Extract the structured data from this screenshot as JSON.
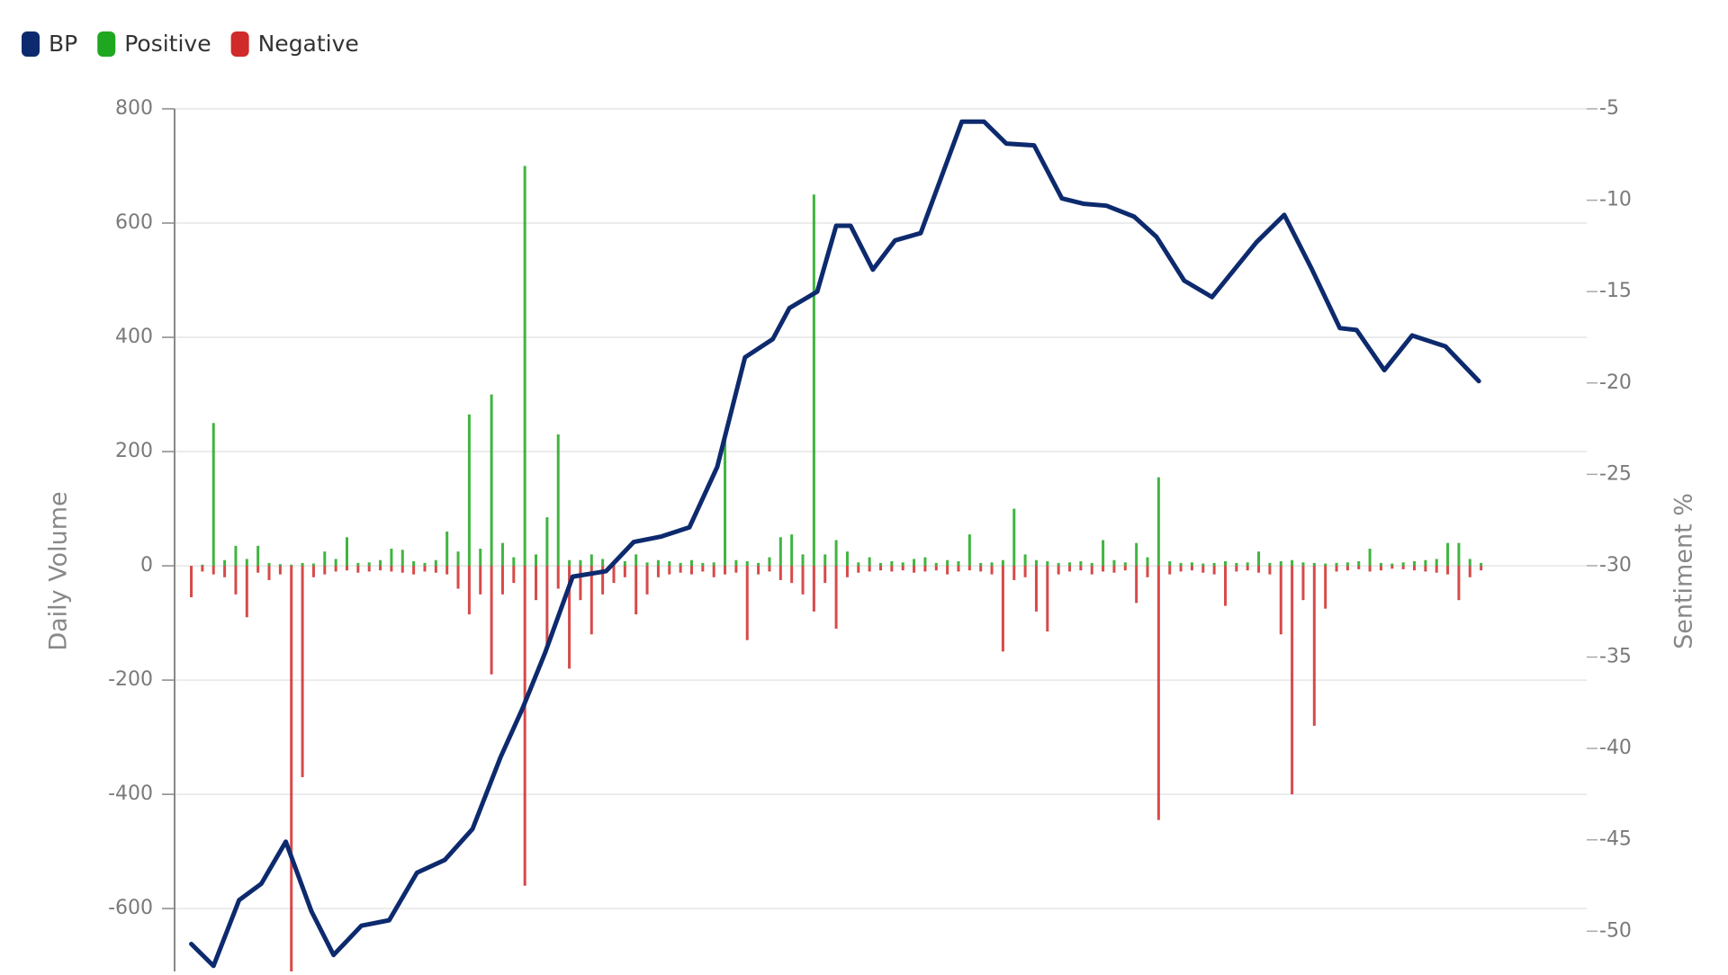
{
  "chart_data": {
    "type": "bar",
    "y_label": "Daily Volume",
    "y2_label": "Sentiment %",
    "xlim": [
      -1.5,
      125.5
    ],
    "ylim": [
      -710,
      800
    ],
    "yticks": [
      -600,
      -400,
      -200,
      0,
      200,
      400,
      600,
      800
    ],
    "y2lim": [
      -52.2,
      -5
    ],
    "y2ticks": [
      -50,
      -45,
      -40,
      -35,
      -30,
      -25,
      -20,
      -15,
      -10,
      -5
    ],
    "grid": true,
    "legend": "top-left",
    "series": [
      {
        "name": "BP",
        "color": "#0d2a6e",
        "type": "line",
        "axis": "y2",
        "x": [
          0,
          2,
          4.3,
          6.3,
          8.5,
          10.8,
          12.8,
          15.3,
          17.8,
          20.3,
          22.8,
          25.3,
          27.8,
          29.8,
          31.8,
          34.3,
          37.3,
          39.8,
          42.3,
          44.8,
          47.3,
          49.8,
          52.3,
          53.8,
          56.3,
          58,
          59.3,
          61.3,
          63.3,
          65.6,
          67.3,
          69.3,
          71.3,
          73.3,
          75.8,
          78.3,
          80.3,
          82.3,
          84.8,
          86.8,
          89.3,
          91.8,
          93.8,
          95.8,
          98.3,
          100.8,
          103.3,
          104.8,
          107.3,
          109.8,
          112.8,
          115.8
        ],
        "values": [
          -50.7,
          -51.9,
          -48.3,
          -47.4,
          -45.1,
          -48.9,
          -51.3,
          -49.7,
          -49.4,
          -46.8,
          -46.1,
          -44.4,
          -40.5,
          -37.8,
          -34.8,
          -30.6,
          -30.3,
          -28.7,
          -28.4,
          -27.9,
          -24.6,
          -18.6,
          -17.6,
          -15.9,
          -15.0,
          -11.4,
          -11.4,
          -13.8,
          -12.2,
          -11.8,
          -9.0,
          -5.7,
          -5.7,
          -6.9,
          -7.0,
          -9.9,
          -10.2,
          -10.3,
          -10.9,
          -12.0,
          -14.4,
          -15.3,
          -13.8,
          -12.3,
          -10.8,
          -13.8,
          -17.0,
          -17.1,
          -19.3,
          -17.4,
          -18.0,
          -19.9
        ]
      },
      {
        "name": "Positive",
        "color": "#1fa81f",
        "values": [
          0,
          2,
          250,
          10,
          35,
          12,
          35,
          5,
          3,
          2,
          5,
          4,
          25,
          12,
          50,
          5,
          6,
          10,
          30,
          28,
          8,
          5,
          10,
          60,
          25,
          265,
          30,
          300,
          40,
          15,
          700,
          20,
          85,
          230,
          10,
          10,
          20,
          12,
          5,
          8,
          20,
          6,
          10,
          8,
          5,
          10,
          5,
          6,
          230,
          10,
          8,
          5,
          15,
          50,
          55,
          20,
          650,
          20,
          45,
          25,
          6,
          15,
          5,
          8,
          6,
          12,
          15,
          5,
          10,
          8,
          55,
          5,
          6,
          10,
          100,
          20,
          10,
          8,
          5,
          6,
          8,
          5,
          45,
          10,
          6,
          40,
          15,
          155,
          8,
          5,
          6,
          4,
          5,
          8,
          5,
          6,
          25,
          5,
          8,
          10,
          6,
          5,
          4,
          5,
          6,
          8,
          30,
          5,
          4,
          6,
          8,
          10,
          12,
          40,
          40,
          12,
          5
        ]
      },
      {
        "name": "Negative",
        "color": "#d02a2a",
        "values": [
          -55,
          -10,
          -15,
          -20,
          -50,
          -90,
          -12,
          -25,
          -15,
          -710,
          -370,
          -20,
          -15,
          -10,
          -8,
          -12,
          -10,
          -8,
          -10,
          -12,
          -15,
          -10,
          -12,
          -15,
          -40,
          -85,
          -50,
          -190,
          -50,
          -30,
          -560,
          -60,
          -140,
          -40,
          -180,
          -60,
          -120,
          -50,
          -30,
          -20,
          -85,
          -50,
          -20,
          -15,
          -12,
          -15,
          -10,
          -20,
          -15,
          -12,
          -130,
          -15,
          -10,
          -25,
          -30,
          -50,
          -80,
          -30,
          -110,
          -20,
          -12,
          -10,
          -8,
          -10,
          -8,
          -12,
          -10,
          -8,
          -15,
          -10,
          -8,
          -10,
          -15,
          -150,
          -25,
          -20,
          -80,
          -115,
          -15,
          -10,
          -8,
          -15,
          -10,
          -12,
          -8,
          -65,
          -20,
          -445,
          -15,
          -10,
          -8,
          -12,
          -15,
          -70,
          -10,
          -8,
          -12,
          -15,
          -120,
          -400,
          -60,
          -280,
          -75,
          -10,
          -8,
          -6,
          -10,
          -8,
          -5,
          -6,
          -8,
          -10,
          -12,
          -15,
          -60,
          -20,
          -8
        ]
      }
    ]
  }
}
